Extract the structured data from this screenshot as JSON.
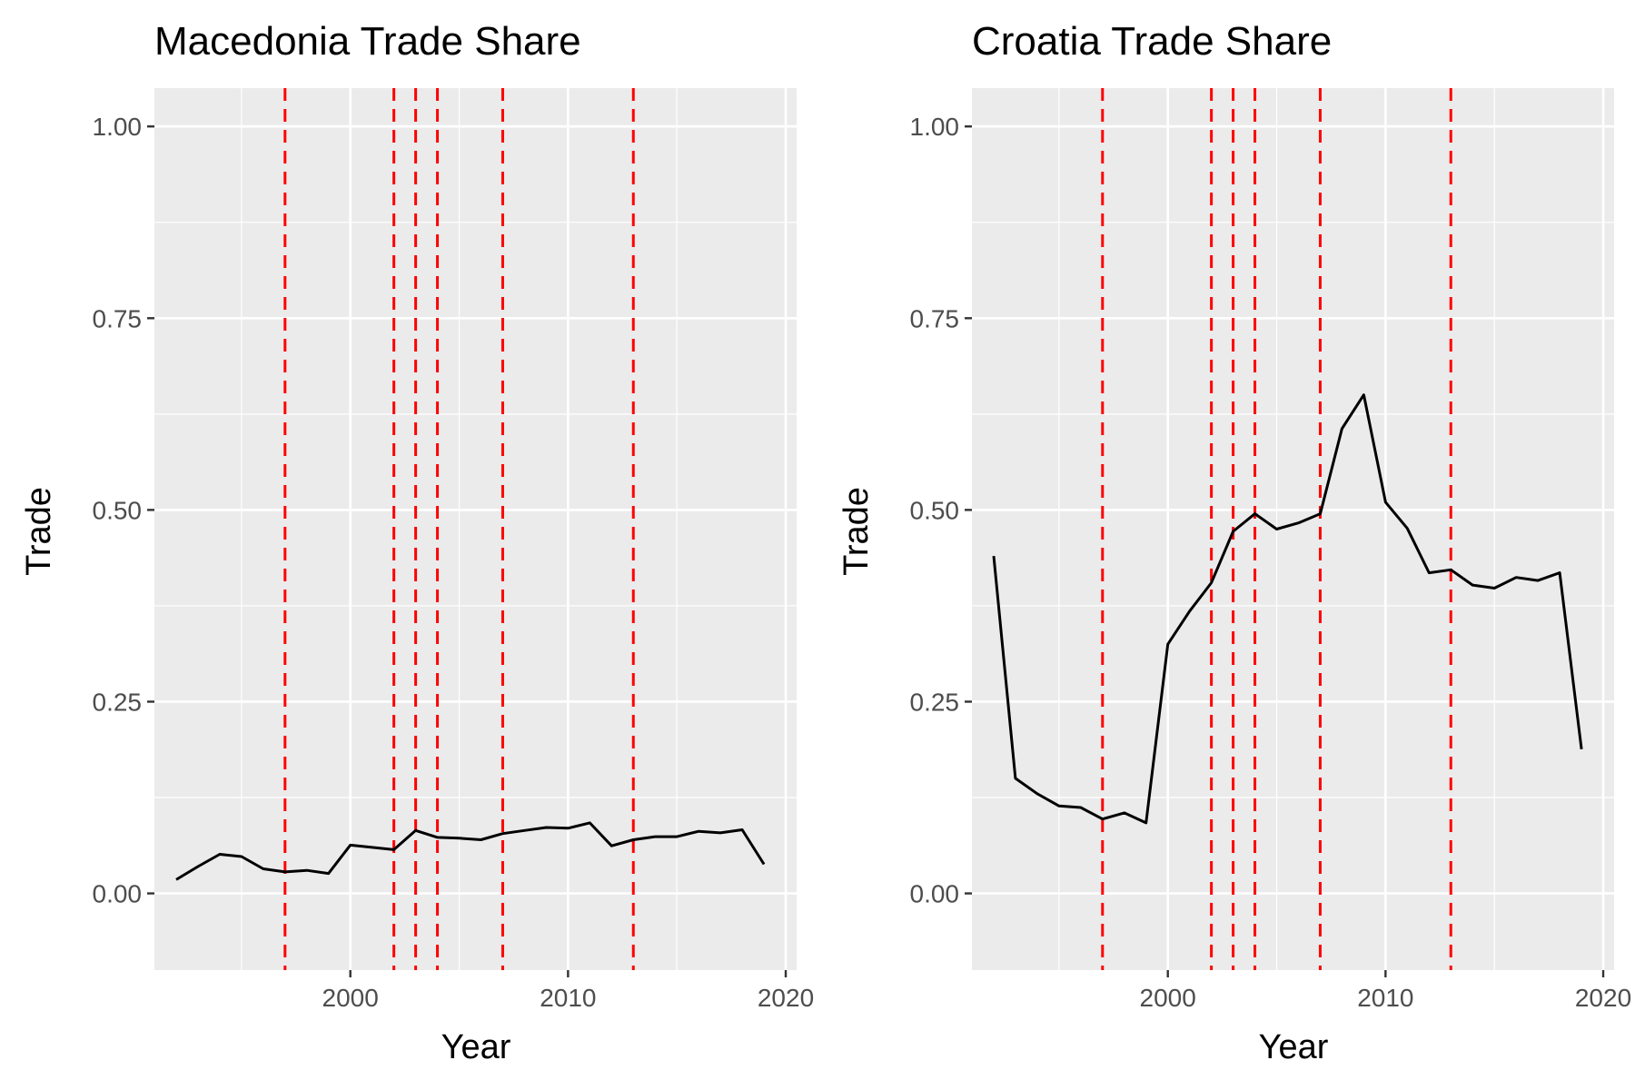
{
  "colors": {
    "panel_background": "#ebebeb",
    "grid": "#ffffff",
    "line": "#000000",
    "vline": "#ff0000",
    "tick_text": "#4d4d4d"
  },
  "chart_data": [
    {
      "type": "line",
      "title": "Macedonia Trade Share",
      "xlabel": "Year",
      "ylabel": "Trade",
      "xlim": [
        1991,
        2020.5
      ],
      "ylim": [
        -0.1,
        1.05
      ],
      "x_ticks": [
        "2000",
        "2010",
        "2020"
      ],
      "y_ticks": [
        "0.00",
        "0.25",
        "0.50",
        "0.75",
        "1.00"
      ],
      "grid": true,
      "vlines": [
        1997,
        2002,
        2003,
        2004,
        2007,
        2013
      ],
      "vline_style": "dashed",
      "x": [
        1992,
        1993,
        1994,
        1995,
        1996,
        1997,
        1998,
        1999,
        2000,
        2001,
        2002,
        2003,
        2004,
        2005,
        2006,
        2007,
        2008,
        2009,
        2010,
        2011,
        2012,
        2013,
        2014,
        2015,
        2016,
        2017,
        2018,
        2019
      ],
      "values": [
        0.018,
        0.035,
        0.051,
        0.048,
        0.032,
        0.028,
        0.03,
        0.026,
        0.063,
        0.06,
        0.057,
        0.082,
        0.073,
        0.072,
        0.07,
        0.078,
        0.082,
        0.086,
        0.085,
        0.092,
        0.062,
        0.07,
        0.074,
        0.074,
        0.081,
        0.079,
        0.083,
        0.038
      ]
    },
    {
      "type": "line",
      "title": "Croatia Trade Share",
      "xlabel": "Year",
      "ylabel": "Trade",
      "xlim": [
        1991,
        2020.5
      ],
      "ylim": [
        -0.1,
        1.05
      ],
      "x_ticks": [
        "2000",
        "2010",
        "2020"
      ],
      "y_ticks": [
        "0.00",
        "0.25",
        "0.50",
        "0.75",
        "1.00"
      ],
      "grid": true,
      "vlines": [
        1997,
        2002,
        2003,
        2004,
        2007,
        2013
      ],
      "vline_style": "dashed",
      "x": [
        1992,
        1993,
        1994,
        1995,
        1996,
        1997,
        1998,
        1999,
        2000,
        2001,
        2002,
        2003,
        2004,
        2005,
        2006,
        2007,
        2008,
        2009,
        2010,
        2011,
        2012,
        2013,
        2014,
        2015,
        2016,
        2017,
        2018,
        2019
      ],
      "values": [
        0.44,
        0.15,
        0.13,
        0.114,
        0.112,
        0.097,
        0.105,
        0.092,
        0.325,
        0.368,
        0.405,
        0.472,
        0.495,
        0.475,
        0.483,
        0.495,
        0.606,
        0.65,
        0.51,
        0.476,
        0.418,
        0.422,
        0.402,
        0.398,
        0.412,
        0.408,
        0.418,
        0.188
      ]
    }
  ]
}
